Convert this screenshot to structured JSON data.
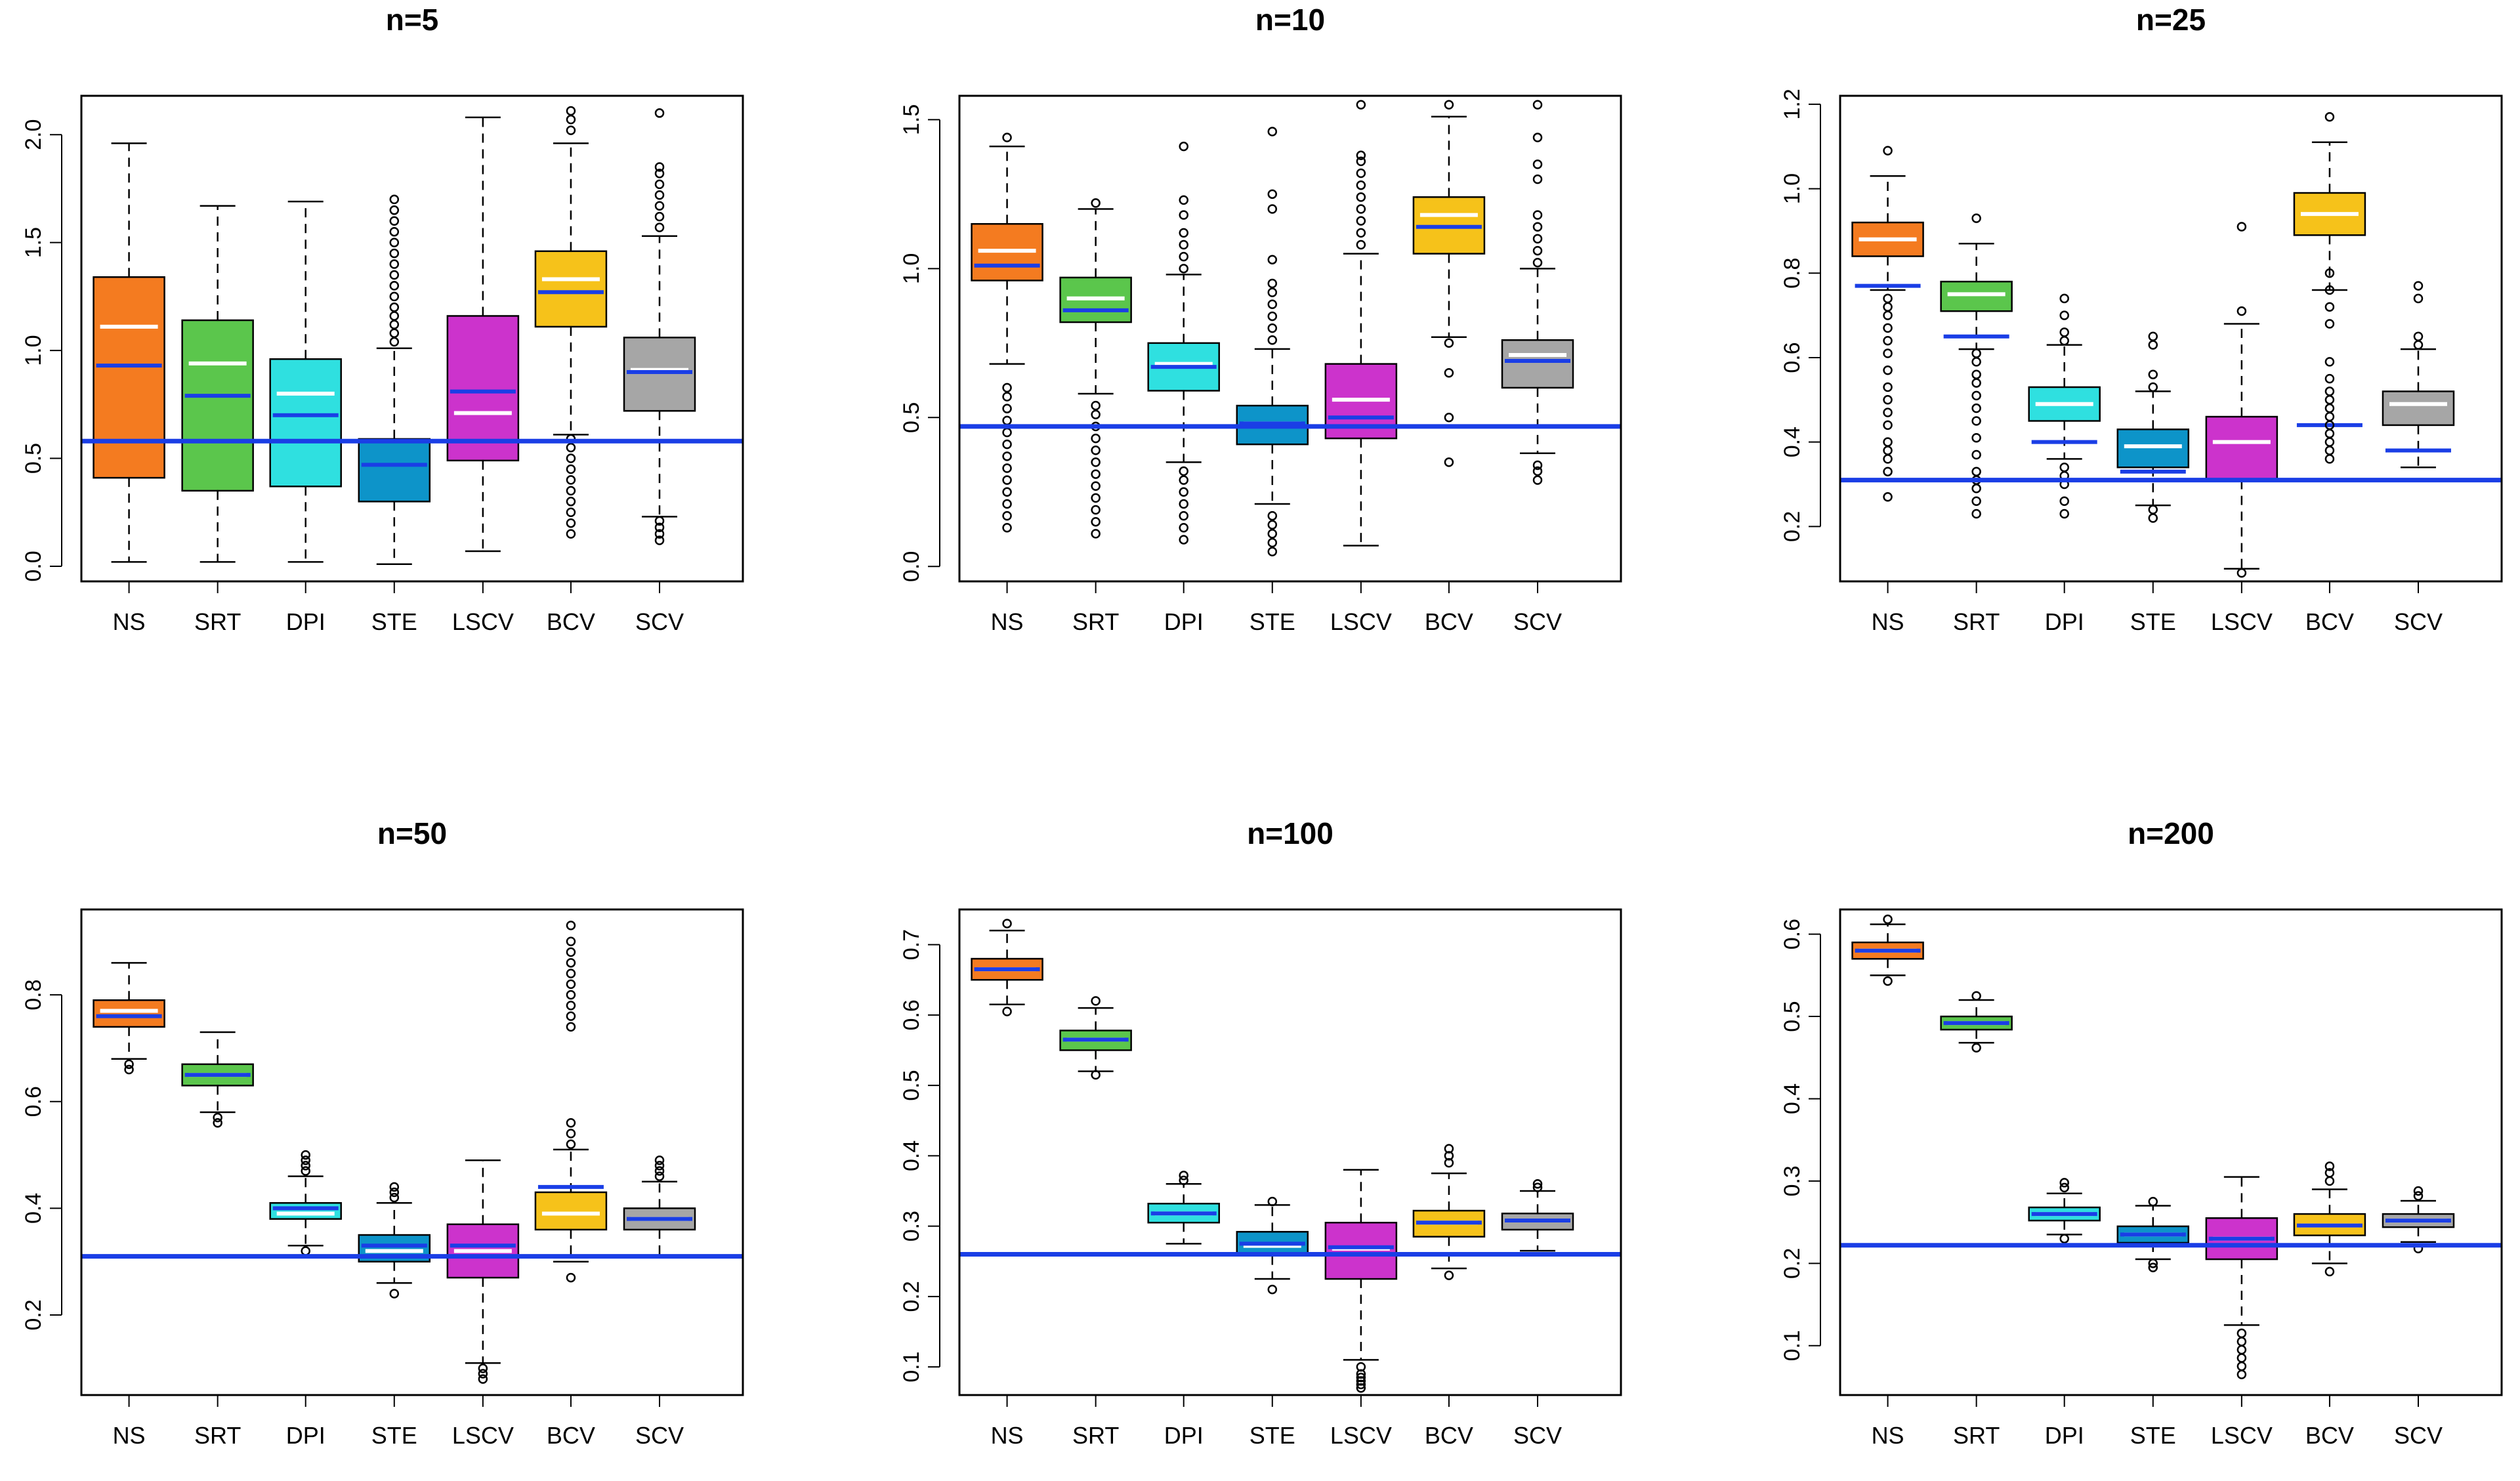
{
  "chart_data": [
    {
      "type": "boxplot",
      "title": "n=5",
      "categories": [
        "NS",
        "SRT",
        "DPI",
        "STE",
        "LSCV",
        "BCV",
        "SCV"
      ],
      "colors": [
        "#f47b20",
        "#5bc64c",
        "#2fe0e0",
        "#0d94c9",
        "#cc33cc",
        "#f6c21a",
        "#a6a6a6"
      ],
      "yticks": [
        "0.0",
        "0.5",
        "1.0",
        "1.5",
        "2.0"
      ],
      "ylim": [
        -0.07,
        2.18
      ],
      "reference_line": 0.58,
      "boxes": [
        {
          "lower_whisker": 0.02,
          "q1": 0.41,
          "median_white": 1.11,
          "mean_blue": 0.93,
          "q3": 1.34,
          "upper_whisker": 1.96,
          "outliers": []
        },
        {
          "lower_whisker": 0.02,
          "q1": 0.35,
          "median_white": 0.94,
          "mean_blue": 0.79,
          "q3": 1.14,
          "upper_whisker": 1.67,
          "outliers": []
        },
        {
          "lower_whisker": 0.02,
          "q1": 0.37,
          "median_white": 0.8,
          "mean_blue": 0.7,
          "q3": 0.96,
          "upper_whisker": 1.69,
          "outliers": []
        },
        {
          "lower_whisker": 0.01,
          "q1": 0.3,
          "median_white": 0.58,
          "mean_blue": 0.47,
          "q3": 0.59,
          "upper_whisker": 1.01,
          "outliers": [
            1.04,
            1.08,
            1.12,
            1.16,
            1.2,
            1.25,
            1.3,
            1.35,
            1.4,
            1.45,
            1.5,
            1.55,
            1.6,
            1.65,
            1.7
          ]
        },
        {
          "lower_whisker": 0.07,
          "q1": 0.49,
          "median_white": 0.71,
          "mean_blue": 0.81,
          "q3": 1.16,
          "upper_whisker": 2.08,
          "outliers": []
        },
        {
          "lower_whisker": 0.61,
          "q1": 1.11,
          "median_white": 1.33,
          "mean_blue": 1.27,
          "q3": 1.46,
          "upper_whisker": 1.96,
          "outliers": [
            0.15,
            0.2,
            0.25,
            0.3,
            0.35,
            0.4,
            0.45,
            0.5,
            0.55,
            0.59,
            2.02,
            2.07,
            2.11
          ]
        },
        {
          "lower_whisker": 0.23,
          "q1": 0.72,
          "median_white": 0.91,
          "mean_blue": 0.9,
          "q3": 1.06,
          "upper_whisker": 1.53,
          "outliers": [
            0.12,
            0.15,
            0.18,
            0.21,
            1.57,
            1.62,
            1.67,
            1.72,
            1.77,
            1.82,
            1.85,
            2.1
          ]
        }
      ]
    },
    {
      "type": "boxplot",
      "title": "n=10",
      "categories": [
        "NS",
        "SRT",
        "DPI",
        "STE",
        "LSCV",
        "BCV",
        "SCV"
      ],
      "colors": [
        "#f47b20",
        "#5bc64c",
        "#2fe0e0",
        "#0d94c9",
        "#cc33cc",
        "#f6c21a",
        "#a6a6a6"
      ],
      "yticks": [
        "0.0",
        "0.5",
        "1.0",
        "1.5"
      ],
      "ylim": [
        -0.05,
        1.58
      ],
      "reference_line": 0.47,
      "boxes": [
        {
          "lower_whisker": 0.68,
          "q1": 0.96,
          "median_white": 1.06,
          "mean_blue": 1.01,
          "q3": 1.15,
          "upper_whisker": 1.41,
          "outliers": [
            0.13,
            0.17,
            0.21,
            0.25,
            0.29,
            0.33,
            0.37,
            0.41,
            0.45,
            0.49,
            0.53,
            0.57,
            0.6,
            1.44
          ]
        },
        {
          "lower_whisker": 0.58,
          "q1": 0.82,
          "median_white": 0.9,
          "mean_blue": 0.86,
          "q3": 0.97,
          "upper_whisker": 1.2,
          "outliers": [
            0.11,
            0.15,
            0.19,
            0.23,
            0.27,
            0.31,
            0.35,
            0.39,
            0.43,
            0.47,
            0.51,
            0.54,
            1.22
          ]
        },
        {
          "lower_whisker": 0.35,
          "q1": 0.59,
          "median_white": 0.68,
          "mean_blue": 0.67,
          "q3": 0.75,
          "upper_whisker": 0.98,
          "outliers": [
            0.09,
            0.13,
            0.17,
            0.21,
            0.25,
            0.29,
            0.32,
            1.0,
            1.04,
            1.08,
            1.12,
            1.18,
            1.23,
            1.41
          ]
        },
        {
          "lower_whisker": 0.21,
          "q1": 0.41,
          "median_white": 0.48,
          "mean_blue": 0.48,
          "q3": 0.54,
          "upper_whisker": 0.73,
          "outliers": [
            0.05,
            0.08,
            0.11,
            0.14,
            0.17,
            0.76,
            0.8,
            0.84,
            0.88,
            0.92,
            0.95,
            1.03,
            1.2,
            1.25,
            1.46
          ]
        },
        {
          "lower_whisker": 0.07,
          "q1": 0.43,
          "median_white": 0.56,
          "mean_blue": 0.5,
          "q3": 0.68,
          "upper_whisker": 1.05,
          "outliers": [
            1.08,
            1.12,
            1.16,
            1.2,
            1.24,
            1.28,
            1.32,
            1.36,
            1.38,
            1.55
          ]
        },
        {
          "lower_whisker": 0.77,
          "q1": 1.05,
          "median_white": 1.18,
          "mean_blue": 1.14,
          "q3": 1.24,
          "upper_whisker": 1.51,
          "outliers": [
            0.35,
            0.5,
            0.65,
            0.75,
            1.55
          ]
        },
        {
          "lower_whisker": 0.38,
          "q1": 0.6,
          "median_white": 0.71,
          "mean_blue": 0.69,
          "q3": 0.76,
          "upper_whisker": 1.0,
          "outliers": [
            0.29,
            0.32,
            0.34,
            1.02,
            1.06,
            1.1,
            1.14,
            1.18,
            1.3,
            1.35,
            1.44,
            1.55
          ]
        }
      ]
    },
    {
      "type": "boxplot",
      "title": "n=25",
      "categories": [
        "NS",
        "SRT",
        "DPI",
        "STE",
        "LSCV",
        "BCV",
        "SCV"
      ],
      "colors": [
        "#f47b20",
        "#5bc64c",
        "#2fe0e0",
        "#0d94c9",
        "#cc33cc",
        "#f6c21a",
        "#a6a6a6"
      ],
      "yticks": [
        "0.2",
        "0.4",
        "0.6",
        "0.8",
        "1.0",
        "1.2"
      ],
      "ylim": [
        0.07,
        1.22
      ],
      "reference_line": 0.31,
      "boxes": [
        {
          "lower_whisker": 0.76,
          "q1": 0.84,
          "median_white": 0.88,
          "mean_blue": 0.77,
          "q3": 0.92,
          "upper_whisker": 1.03,
          "outliers": [
            0.27,
            0.33,
            0.36,
            0.38,
            0.4,
            0.44,
            0.47,
            0.5,
            0.53,
            0.57,
            0.61,
            0.64,
            0.67,
            0.7,
            0.72,
            0.74,
            1.09
          ]
        },
        {
          "lower_whisker": 0.62,
          "q1": 0.71,
          "median_white": 0.75,
          "mean_blue": 0.65,
          "q3": 0.78,
          "upper_whisker": 0.87,
          "outliers": [
            0.23,
            0.26,
            0.29,
            0.31,
            0.33,
            0.37,
            0.41,
            0.45,
            0.48,
            0.51,
            0.54,
            0.56,
            0.59,
            0.61,
            0.93
          ]
        },
        {
          "lower_whisker": 0.36,
          "q1": 0.45,
          "median_white": 0.49,
          "mean_blue": 0.4,
          "q3": 0.53,
          "upper_whisker": 0.63,
          "outliers": [
            0.23,
            0.26,
            0.3,
            0.32,
            0.34,
            0.64,
            0.66,
            0.7,
            0.74
          ]
        },
        {
          "lower_whisker": 0.25,
          "q1": 0.34,
          "median_white": 0.39,
          "mean_blue": 0.33,
          "q3": 0.43,
          "upper_whisker": 0.52,
          "outliers": [
            0.22,
            0.24,
            0.53,
            0.56,
            0.63,
            0.65
          ]
        },
        {
          "lower_whisker": 0.1,
          "q1": 0.31,
          "median_white": 0.4,
          "mean_blue": 0.31,
          "q3": 0.46,
          "upper_whisker": 0.68,
          "outliers": [
            0.09,
            0.71,
            0.91
          ]
        },
        {
          "lower_whisker": 0.76,
          "q1": 0.89,
          "median_white": 0.94,
          "mean_blue": 0.44,
          "q3": 0.99,
          "upper_whisker": 1.11,
          "outliers": [
            0.36,
            0.38,
            0.4,
            0.42,
            0.44,
            0.46,
            0.48,
            0.5,
            0.52,
            0.55,
            0.59,
            0.68,
            0.72,
            0.76,
            0.8,
            1.17
          ]
        },
        {
          "lower_whisker": 0.34,
          "q1": 0.44,
          "median_white": 0.49,
          "mean_blue": 0.38,
          "q3": 0.52,
          "upper_whisker": 0.62,
          "outliers": [
            0.63,
            0.65,
            0.74,
            0.77
          ]
        }
      ]
    },
    {
      "type": "boxplot",
      "title": "n=50",
      "categories": [
        "NS",
        "SRT",
        "DPI",
        "STE",
        "LSCV",
        "BCV",
        "SCV"
      ],
      "colors": [
        "#f47b20",
        "#5bc64c",
        "#2fe0e0",
        "#0d94c9",
        "#cc33cc",
        "#f6c21a",
        "#a6a6a6"
      ],
      "yticks": [
        "0.2",
        "0.4",
        "0.6",
        "0.8"
      ],
      "ylim": [
        0.05,
        0.96
      ],
      "reference_line": 0.31,
      "boxes": [
        {
          "lower_whisker": 0.68,
          "q1": 0.74,
          "median_white": 0.77,
          "mean_blue": 0.76,
          "q3": 0.79,
          "upper_whisker": 0.86,
          "outliers": [
            0.66,
            0.67
          ]
        },
        {
          "lower_whisker": 0.58,
          "q1": 0.63,
          "median_white": 0.65,
          "mean_blue": 0.65,
          "q3": 0.67,
          "upper_whisker": 0.73,
          "outliers": [
            0.56,
            0.57
          ]
        },
        {
          "lower_whisker": 0.33,
          "q1": 0.38,
          "median_white": 0.39,
          "mean_blue": 0.4,
          "q3": 0.41,
          "upper_whisker": 0.46,
          "outliers": [
            0.32,
            0.47,
            0.48,
            0.49,
            0.5
          ]
        },
        {
          "lower_whisker": 0.26,
          "q1": 0.3,
          "median_white": 0.32,
          "mean_blue": 0.33,
          "q3": 0.35,
          "upper_whisker": 0.41,
          "outliers": [
            0.24,
            0.42,
            0.43,
            0.44
          ]
        },
        {
          "lower_whisker": 0.11,
          "q1": 0.27,
          "median_white": 0.32,
          "mean_blue": 0.33,
          "q3": 0.37,
          "upper_whisker": 0.49,
          "outliers": [
            0.08,
            0.09,
            0.1
          ]
        },
        {
          "lower_whisker": 0.3,
          "q1": 0.36,
          "median_white": 0.39,
          "mean_blue": 0.44,
          "q3": 0.43,
          "upper_whisker": 0.51,
          "outliers": [
            0.27,
            0.52,
            0.54,
            0.56,
            0.74,
            0.76,
            0.78,
            0.8,
            0.82,
            0.84,
            0.86,
            0.88,
            0.9,
            0.93
          ]
        },
        {
          "lower_whisker": 0.31,
          "q1": 0.36,
          "median_white": 0.38,
          "mean_blue": 0.38,
          "q3": 0.4,
          "upper_whisker": 0.45,
          "outliers": [
            0.46,
            0.47,
            0.48,
            0.49
          ]
        }
      ]
    },
    {
      "type": "boxplot",
      "title": "n=100",
      "categories": [
        "NS",
        "SRT",
        "DPI",
        "STE",
        "LSCV",
        "BCV",
        "SCV"
      ],
      "colors": [
        "#f47b20",
        "#5bc64c",
        "#2fe0e0",
        "#0d94c9",
        "#cc33cc",
        "#f6c21a",
        "#a6a6a6"
      ],
      "yticks": [
        "0.1",
        "0.2",
        "0.3",
        "0.4",
        "0.5",
        "0.6",
        "0.7"
      ],
      "ylim": [
        0.06,
        0.75
      ],
      "reference_line": 0.26,
      "boxes": [
        {
          "lower_whisker": 0.615,
          "q1": 0.65,
          "median_white": 0.665,
          "mean_blue": 0.665,
          "q3": 0.68,
          "upper_whisker": 0.72,
          "outliers": [
            0.605,
            0.73
          ]
        },
        {
          "lower_whisker": 0.52,
          "q1": 0.55,
          "median_white": 0.565,
          "mean_blue": 0.565,
          "q3": 0.578,
          "upper_whisker": 0.61,
          "outliers": [
            0.515,
            0.62
          ]
        },
        {
          "lower_whisker": 0.275,
          "q1": 0.305,
          "median_white": 0.318,
          "mean_blue": 0.318,
          "q3": 0.332,
          "upper_whisker": 0.36,
          "outliers": [
            0.365,
            0.372
          ]
        },
        {
          "lower_whisker": 0.225,
          "q1": 0.258,
          "median_white": 0.272,
          "mean_blue": 0.275,
          "q3": 0.292,
          "upper_whisker": 0.33,
          "outliers": [
            0.21,
            0.335
          ]
        },
        {
          "lower_whisker": 0.11,
          "q1": 0.225,
          "median_white": 0.268,
          "mean_blue": 0.27,
          "q3": 0.305,
          "upper_whisker": 0.38,
          "outliers": [
            0.07,
            0.075,
            0.08,
            0.085,
            0.09,
            0.1
          ]
        },
        {
          "lower_whisker": 0.24,
          "q1": 0.285,
          "median_white": 0.305,
          "mean_blue": 0.305,
          "q3": 0.322,
          "upper_whisker": 0.375,
          "outliers": [
            0.23,
            0.39,
            0.4,
            0.41
          ]
        },
        {
          "lower_whisker": 0.265,
          "q1": 0.295,
          "median_white": 0.308,
          "mean_blue": 0.308,
          "q3": 0.318,
          "upper_whisker": 0.35,
          "outliers": [
            0.355,
            0.36
          ]
        }
      ]
    },
    {
      "type": "boxplot",
      "title": "n=200",
      "categories": [
        "NS",
        "SRT",
        "DPI",
        "STE",
        "LSCV",
        "BCV",
        "SCV"
      ],
      "colors": [
        "#f47b20",
        "#5bc64c",
        "#2fe0e0",
        "#0d94c9",
        "#cc33cc",
        "#f6c21a",
        "#a6a6a6"
      ],
      "yticks": [
        "0.1",
        "0.2",
        "0.3",
        "0.4",
        "0.5",
        "0.6"
      ],
      "ylim": [
        0.04,
        0.63
      ],
      "reference_line": 0.222,
      "boxes": [
        {
          "lower_whisker": 0.55,
          "q1": 0.57,
          "median_white": 0.58,
          "mean_blue": 0.58,
          "q3": 0.59,
          "upper_whisker": 0.612,
          "outliers": [
            0.543,
            0.618
          ]
        },
        {
          "lower_whisker": 0.468,
          "q1": 0.484,
          "median_white": 0.492,
          "mean_blue": 0.492,
          "q3": 0.5,
          "upper_whisker": 0.52,
          "outliers": [
            0.462,
            0.525
          ]
        },
        {
          "lower_whisker": 0.235,
          "q1": 0.252,
          "median_white": 0.26,
          "mean_blue": 0.26,
          "q3": 0.268,
          "upper_whisker": 0.285,
          "outliers": [
            0.23,
            0.292,
            0.298
          ]
        },
        {
          "lower_whisker": 0.205,
          "q1": 0.225,
          "median_white": 0.235,
          "mean_blue": 0.235,
          "q3": 0.245,
          "upper_whisker": 0.27,
          "outliers": [
            0.195,
            0.2,
            0.275
          ]
        },
        {
          "lower_whisker": 0.125,
          "q1": 0.205,
          "median_white": 0.23,
          "mean_blue": 0.23,
          "q3": 0.255,
          "upper_whisker": 0.305,
          "outliers": [
            0.065,
            0.075,
            0.085,
            0.095,
            0.105,
            0.115
          ]
        },
        {
          "lower_whisker": 0.2,
          "q1": 0.234,
          "median_white": 0.246,
          "mean_blue": 0.246,
          "q3": 0.26,
          "upper_whisker": 0.29,
          "outliers": [
            0.19,
            0.3,
            0.31,
            0.318
          ]
        },
        {
          "lower_whisker": 0.226,
          "q1": 0.244,
          "median_white": 0.252,
          "mean_blue": 0.252,
          "q3": 0.26,
          "upper_whisker": 0.276,
          "outliers": [
            0.218,
            0.282,
            0.288
          ]
        }
      ]
    }
  ]
}
